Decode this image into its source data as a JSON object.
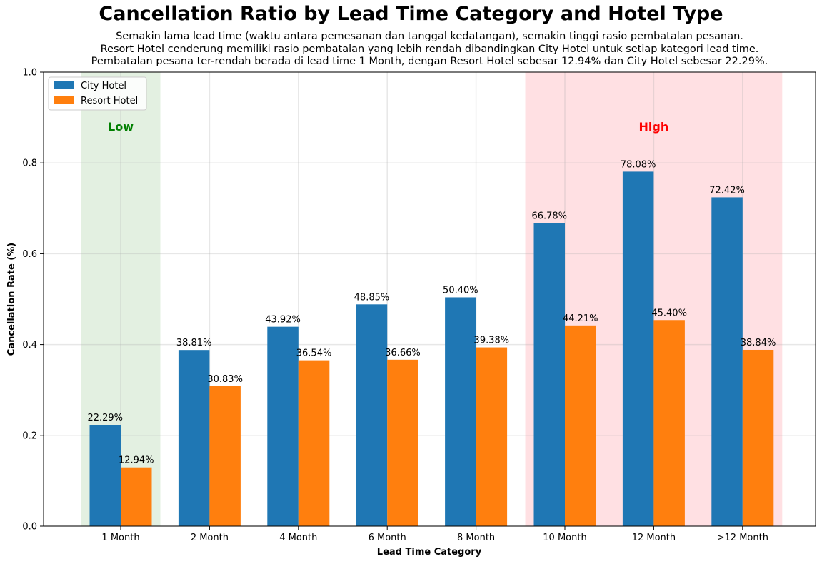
{
  "chart_data": {
    "type": "bar",
    "title": "Cancellation Ratio by Lead Time Category and Hotel Type",
    "subtitle_lines": [
      "Semakin lama lead time (waktu antara pemesanan dan tanggal kedatangan), semakin tinggi rasio pembatalan pesanan.",
      "Resort Hotel cenderung memiliki rasio pembatalan yang lebih rendah dibandingkan City Hotel untuk setiap kategori lead time.",
      "Pembatalan pesana ter-rendah berada di lead time 1 Month, dengan Resort Hotel sebesar 12.94% dan City Hotel sebesar 22.29%."
    ],
    "xlabel": "Lead Time Category",
    "ylabel": "Cancellation Rate (%)",
    "ylim": [
      0,
      1.0
    ],
    "yticks": [
      "0.0",
      "0.2",
      "0.4",
      "0.6",
      "0.8",
      "1.0"
    ],
    "categories": [
      "1 Month",
      "2 Month",
      "4 Month",
      "6 Month",
      "8 Month",
      "10 Month",
      "12 Month",
      ">12 Month"
    ],
    "series": [
      {
        "name": "City Hotel",
        "color": "#1f77b4",
        "values": [
          0.2229,
          0.3881,
          0.4392,
          0.4885,
          0.504,
          0.6678,
          0.7808,
          0.7242
        ],
        "labels": [
          "22.29%",
          "38.81%",
          "43.92%",
          "48.85%",
          "50.40%",
          "66.78%",
          "78.08%",
          "72.42%"
        ]
      },
      {
        "name": "Resort Hotel",
        "color": "#ff7f0e",
        "values": [
          0.1294,
          0.3083,
          0.3654,
          0.3666,
          0.3938,
          0.4421,
          0.454,
          0.3884
        ],
        "labels": [
          "12.94%",
          "30.83%",
          "36.54%",
          "36.66%",
          "39.38%",
          "44.21%",
          "45.40%",
          "38.84%"
        ]
      }
    ],
    "grid": true,
    "legend_position": "upper-left",
    "highlight_regions": [
      {
        "label": "Low",
        "label_color": "#008000",
        "fill": "#e3f0e1",
        "from_index": 0,
        "to_index": 0
      },
      {
        "label": "High",
        "label_color": "#ff0000",
        "fill": "#ffe0e3",
        "from_index": 5,
        "to_index": 7
      }
    ]
  }
}
